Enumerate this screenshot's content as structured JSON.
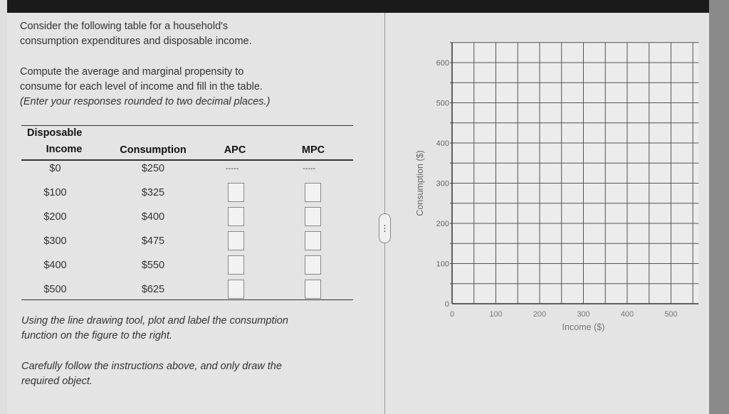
{
  "question": {
    "intro": [
      "Consider the following table for a household's",
      "consumption expenditures and disposable income."
    ],
    "instructions": [
      "Compute the average and marginal propensity to",
      "consume for each level of income and fill in the table."
    ],
    "rounding_note": "(Enter your responses rounded to two decimal places.)",
    "plot_instructions": [
      "Using the line drawing tool, plot and label the consumption",
      "function on the figure to the right."
    ],
    "caution": [
      "Carefully follow the instructions above, and only draw the",
      "required object."
    ]
  },
  "table": {
    "headers": {
      "income_line1": "Disposable",
      "income_line2": "Income",
      "consumption": "Consumption",
      "apc": "APC",
      "mpc": "MPC"
    },
    "rows": [
      {
        "income": "$0",
        "consumption": "$250",
        "apc": "-----",
        "mpc": "-----"
      },
      {
        "income": "$100",
        "consumption": "$325",
        "apc": "",
        "mpc": ""
      },
      {
        "income": "$200",
        "consumption": "$400",
        "apc": "",
        "mpc": ""
      },
      {
        "income": "$300",
        "consumption": "$475",
        "apc": "",
        "mpc": ""
      },
      {
        "income": "$400",
        "consumption": "$550",
        "apc": "",
        "mpc": ""
      },
      {
        "income": "$500",
        "consumption": "$625",
        "apc": "",
        "mpc": ""
      }
    ]
  },
  "divider_handle": "⋮",
  "graph": {
    "xlabel": "Income ($)",
    "ylabel": "Consumption ($)",
    "xticks": [
      "0",
      "100",
      "200",
      "300",
      "400",
      "500"
    ],
    "yticks": [
      "0",
      "100",
      "200",
      "300",
      "400",
      "500",
      "600"
    ],
    "x_range": [
      0,
      550
    ],
    "y_range": [
      0,
      650
    ],
    "grid_step": 50,
    "grid": true
  }
}
